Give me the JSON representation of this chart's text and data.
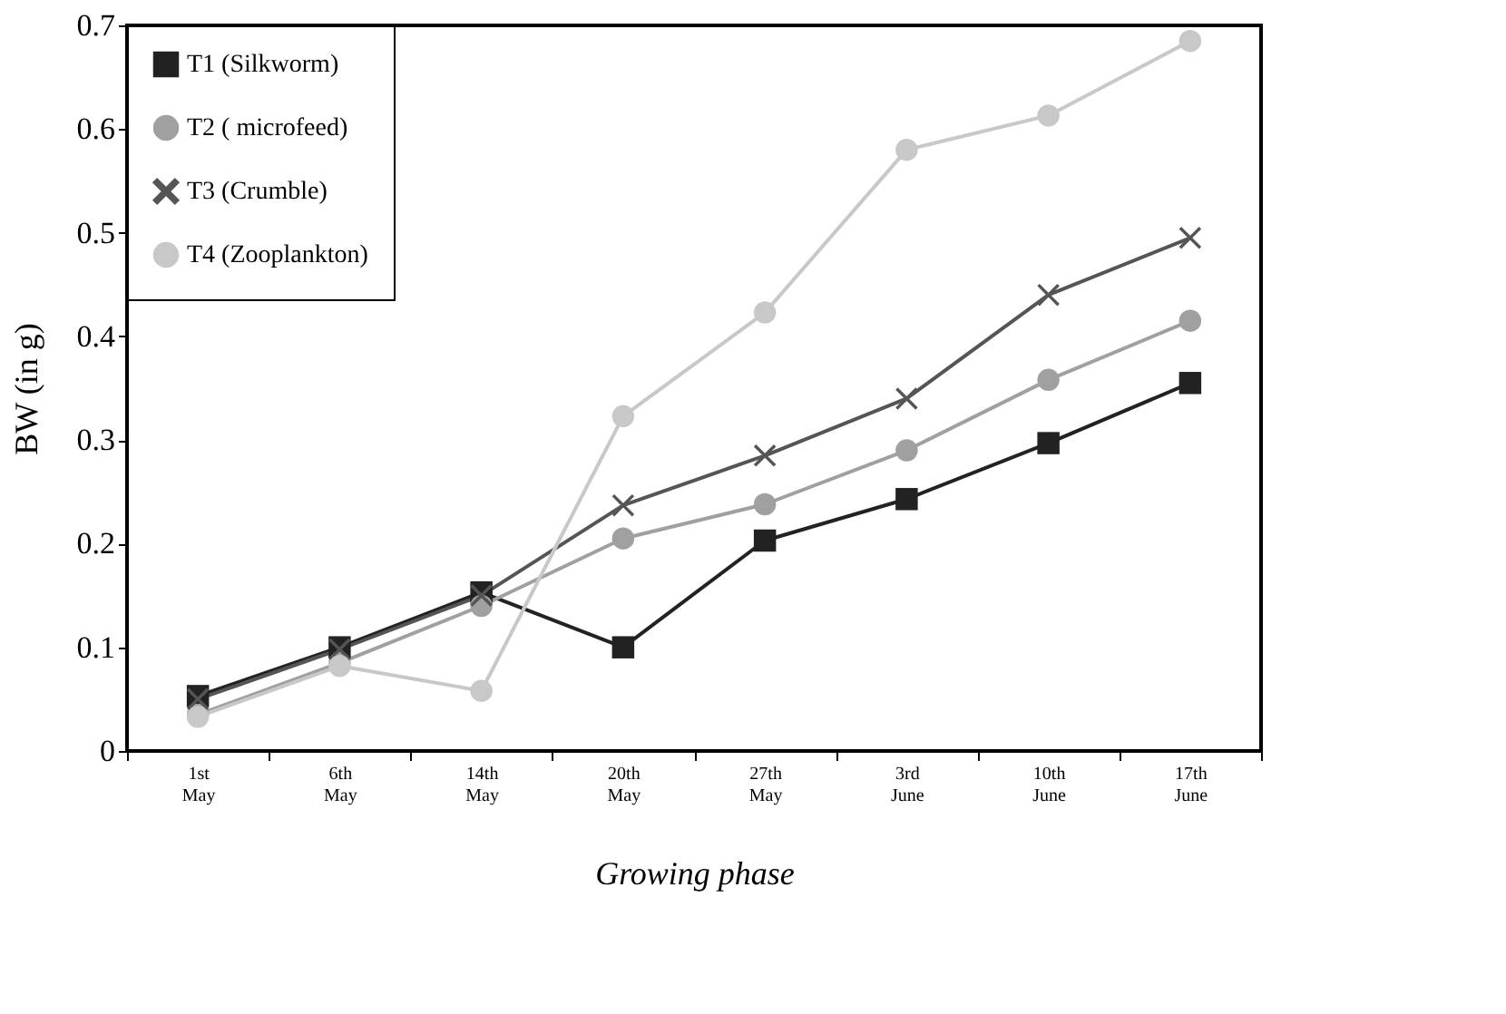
{
  "chart_data": {
    "type": "line",
    "xlabel": "Growing phase",
    "ylabel": "BW (in g)",
    "categories": [
      "1st May",
      "6th May",
      "14th May",
      "20th May",
      "27th May",
      "3rd June",
      "10th June",
      "17th June"
    ],
    "ylim": [
      0,
      0.7
    ],
    "yticks": [
      0,
      0.1,
      0.2,
      0.3,
      0.4,
      0.5,
      0.6,
      0.7
    ],
    "grid": false,
    "legend": "top left",
    "series": [
      {
        "name": "T1 (Silkworm)",
        "color": "#222222",
        "marker": "square",
        "values": [
          0.053,
          0.1,
          0.153,
          0.1,
          0.203,
          0.243,
          0.297,
          0.355
        ]
      },
      {
        "name": "T2 (  microfeed)",
        "color": "#a0a0a0",
        "marker": "circle",
        "values": [
          0.035,
          0.085,
          0.14,
          0.205,
          0.238,
          0.29,
          0.358,
          0.415
        ]
      },
      {
        "name": "T3 (Crumble)",
        "color": "#555555",
        "marker": "cross",
        "values": [
          0.05,
          0.098,
          0.15,
          0.237,
          0.285,
          0.34,
          0.44,
          0.495
        ]
      },
      {
        "name": "T4 (Zooplankton)",
        "color": "#c8c8c8",
        "marker": "circle",
        "values": [
          0.033,
          0.082,
          0.058,
          0.323,
          0.423,
          0.58,
          0.613,
          0.685
        ]
      }
    ]
  }
}
